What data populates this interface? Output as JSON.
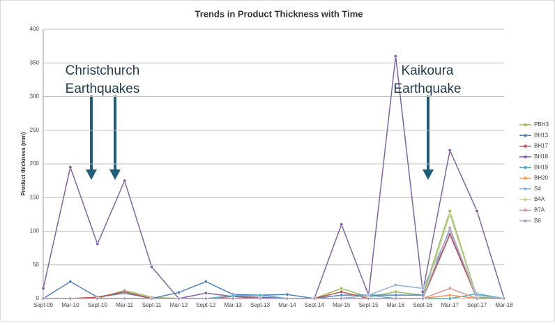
{
  "chart_data": {
    "type": "line",
    "title": "Trends in Product Thickness with Time",
    "y_label": "Product thickness (mm)",
    "categories": [
      "Sept-09",
      "Mar-10",
      "Sept-10",
      "Mar-11",
      "Sept-11",
      "Mar-12",
      "Sept-12",
      "Mar-13",
      "Sept-13",
      "Mar-14",
      "Sept-14",
      "Mar-15",
      "Sept-15",
      "Mar-16",
      "Sept-16",
      "Mar-17",
      "Sept-17",
      "Mar-18"
    ],
    "series": [
      {
        "name": "PBH3",
        "color": "#9bbb59",
        "values": [
          0,
          0,
          0,
          12,
          2,
          0,
          0,
          0,
          0,
          0,
          0,
          15,
          2,
          10,
          5,
          130,
          2,
          0
        ]
      },
      {
        "name": "BH13",
        "color": "#4f81bd",
        "values": [
          0,
          25,
          2,
          8,
          0,
          9,
          25,
          6,
          5,
          6,
          0,
          5,
          5,
          5,
          5,
          95,
          5,
          0
        ]
      },
      {
        "name": "BH17",
        "color": "#c0504d",
        "values": [
          0,
          0,
          2,
          10,
          0,
          0,
          0,
          3,
          0,
          0,
          0,
          10,
          0,
          0,
          0,
          95,
          0,
          0
        ]
      },
      {
        "name": "BH18",
        "color": "#8064a2",
        "values": [
          15,
          195,
          81,
          175,
          47,
          0,
          8,
          3,
          2,
          0,
          0,
          110,
          5,
          360,
          10,
          220,
          130,
          0
        ]
      },
      {
        "name": "BH19",
        "color": "#4bacc6",
        "values": [
          0,
          0,
          0,
          0,
          0,
          0,
          0,
          4,
          5,
          0,
          0,
          0,
          5,
          0,
          0,
          0,
          7,
          0
        ]
      },
      {
        "name": "BH20",
        "color": "#f79646",
        "values": [
          0,
          0,
          0,
          0,
          0,
          0,
          0,
          0,
          0,
          0,
          0,
          0,
          0,
          0,
          0,
          5,
          0,
          0
        ]
      },
      {
        "name": "S4",
        "color": "#95b3d7",
        "values": [
          0,
          0,
          0,
          0,
          0,
          0,
          0,
          0,
          0,
          0,
          0,
          0,
          5,
          20,
          15,
          100,
          5,
          0
        ]
      },
      {
        "name": "B4A",
        "color": "#c3d69b",
        "values": [
          0,
          0,
          0,
          0,
          0,
          0,
          0,
          0,
          0,
          0,
          0,
          0,
          0,
          0,
          0,
          125,
          0,
          0
        ]
      },
      {
        "name": "B7A",
        "color": "#d99694",
        "values": [
          0,
          0,
          0,
          0,
          0,
          0,
          0,
          0,
          0,
          0,
          0,
          0,
          0,
          0,
          0,
          15,
          0,
          0
        ]
      },
      {
        "name": "B8",
        "color": "#b3a2c7",
        "values": [
          0,
          0,
          0,
          0,
          0,
          0,
          0,
          0,
          0,
          0,
          0,
          0,
          0,
          0,
          0,
          105,
          0,
          0
        ]
      }
    ],
    "ylim": [
      0,
      400
    ],
    "yticks": [
      0,
      50,
      100,
      150,
      200,
      250,
      300,
      350,
      400
    ],
    "grid": true,
    "legend": "right",
    "annotations": [
      [
        "Christchurch",
        "Earthquakes"
      ],
      [
        "Kaikoura",
        "Earthquake"
      ]
    ]
  }
}
